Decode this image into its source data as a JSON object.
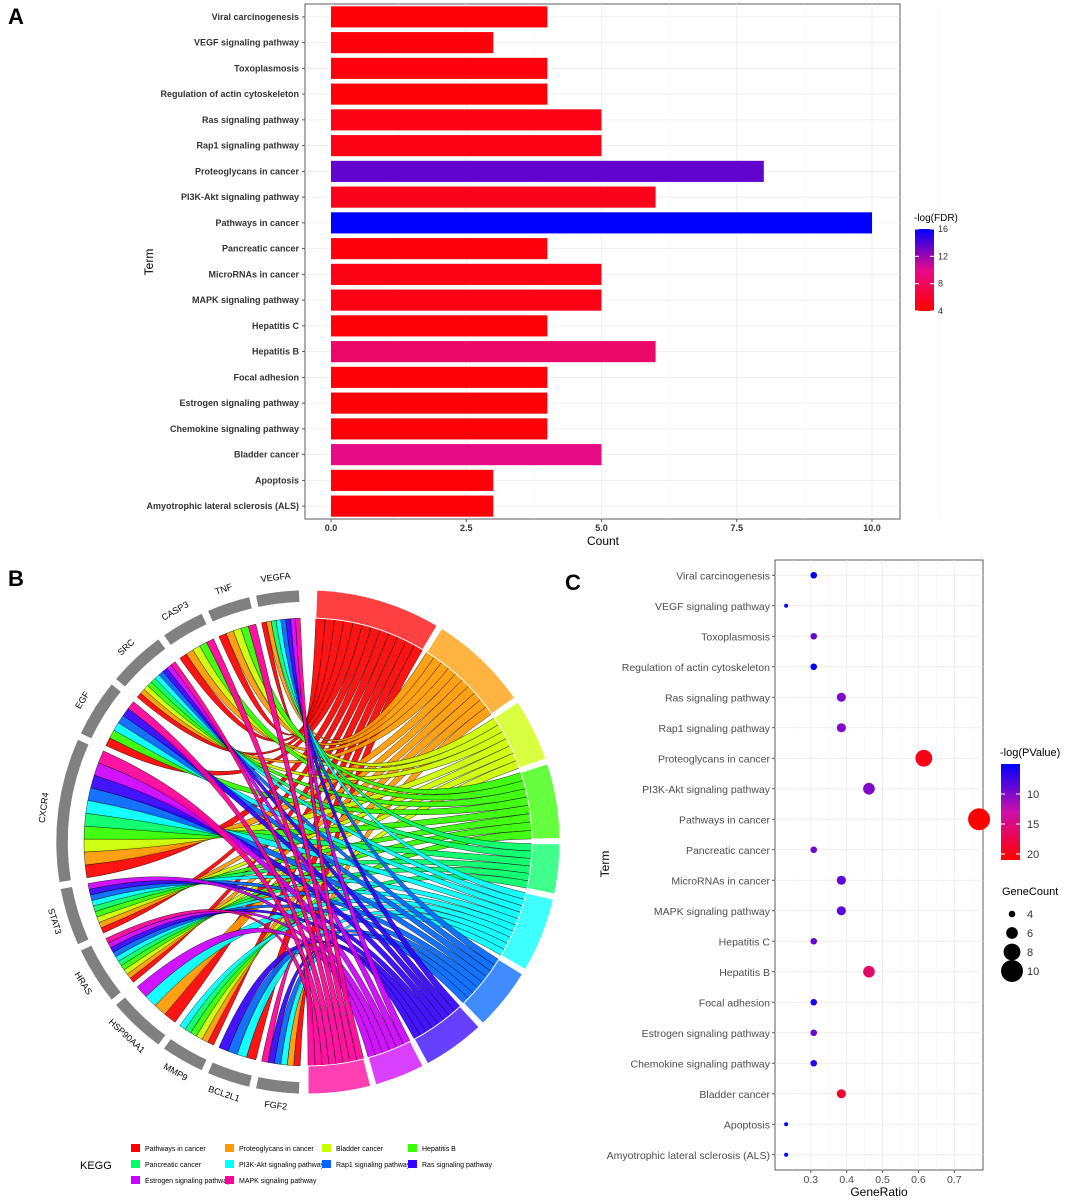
{
  "panels": {
    "a": "A",
    "b": "B",
    "c": "C"
  },
  "chart_data": [
    {
      "type": "bar",
      "orientation": "horizontal",
      "title": "",
      "xlabel": "Count",
      "ylabel": "Term",
      "xlim": [
        0,
        10
      ],
      "x_ticks": [
        0,
        2.5,
        5,
        7.5,
        10
      ],
      "x_tick_labels": [
        "0.0",
        "2.5",
        "5.0",
        "7.5",
        "10.0"
      ],
      "categories": [
        "Viral carcinogenesis",
        "VEGF signaling pathway",
        "Toxoplasmosis",
        "Regulation of actin cytoskeleton",
        "Ras signaling pathway",
        "Rap1 signaling pathway",
        "Proteoglycans in cancer",
        "PI3K-Akt signaling pathway",
        "Pathways in cancer",
        "Pancreatic cancer",
        "MicroRNAs in cancer",
        "MAPK signaling pathway",
        "Hepatitis C",
        "Hepatitis B",
        "Focal adhesion",
        "Estrogen signaling pathway",
        "Chemokine signaling pathway",
        "Bladder cancer",
        "Apoptosis",
        "Amyotrophic lateral sclerosis (ALS)"
      ],
      "values": [
        4,
        3,
        4,
        4,
        5,
        5,
        8,
        6,
        10,
        4,
        5,
        5,
        4,
        6,
        4,
        4,
        4,
        5,
        3,
        3
      ],
      "fdr": [
        4.4,
        4.5,
        4.6,
        4.4,
        4.9,
        4.9,
        13.5,
        5.2,
        16,
        4.5,
        4.9,
        4.9,
        4.4,
        8.5,
        4.4,
        4.4,
        4.4,
        9.8,
        4.3,
        4.3
      ],
      "legend": {
        "title": "-log(FDR)",
        "ticks": [
          4,
          8,
          12,
          16
        ],
        "range": [
          4,
          16
        ],
        "color_low": "#ff0000",
        "color_mid": "#e60a8a",
        "color_high": "#0000ff"
      }
    },
    {
      "type": "chord",
      "genes": [
        "VEGFA",
        "TNF",
        "CASP3",
        "SRC",
        "EGF",
        "CXCR4",
        "STAT3",
        "HRAS",
        "HSP90AA1",
        "MMP9",
        "BCL2L1",
        "FGF2"
      ],
      "pathways": [
        "Pathways in cancer",
        "Proteoglycans in cancer",
        "Bladder cancer",
        "Hepatitis B",
        "Pancreatic cancer",
        "PI3K-Akt signaling pathway",
        "Rap1 signaling pathway",
        "Ras signaling pathway",
        "Estrogen signaling pathway",
        "MAPK signaling pathway"
      ],
      "pathway_colors": [
        "#ff0000",
        "#ff9900",
        "#ccff00",
        "#33ff00",
        "#00ff66",
        "#00ffff",
        "#0066ff",
        "#3300ff",
        "#cc00ff",
        "#ff0099"
      ],
      "pathway_weights": [
        10,
        8,
        5,
        6,
        4,
        6,
        5,
        5,
        4,
        5
      ],
      "legend_title": "KEGG"
    },
    {
      "type": "scatter",
      "title": "",
      "xlabel": "GeneRatio",
      "ylabel": "Term",
      "xlim": [
        0.2,
        0.78
      ],
      "x_ticks": [
        0.3,
        0.4,
        0.5,
        0.6,
        0.7
      ],
      "categories": [
        "Viral carcinogenesis",
        "VEGF signaling pathway",
        "Toxoplasmosis",
        "Regulation of actin cytoskeleton",
        "Ras signaling pathway",
        "Rap1 signaling pathway",
        "Proteoglycans in cancer",
        "PI3K-Akt signaling pathway",
        "Pathways in cancer",
        "Pancreatic cancer",
        "MicroRNAs in cancer",
        "MAPK signaling pathway",
        "Hepatitis C",
        "Hepatitis B",
        "Focal adhesion",
        "Estrogen signaling pathway",
        "Chemokine signaling pathway",
        "Bladder cancer",
        "Apoptosis",
        "Amyotrophic lateral sclerosis (ALS)"
      ],
      "gene_ratio": [
        0.308,
        0.231,
        0.308,
        0.308,
        0.385,
        0.385,
        0.615,
        0.462,
        0.769,
        0.308,
        0.385,
        0.385,
        0.308,
        0.462,
        0.308,
        0.308,
        0.308,
        0.385,
        0.231,
        0.231
      ],
      "gene_count": [
        4,
        3,
        4,
        4,
        5,
        5,
        8,
        6,
        10,
        4,
        5,
        5,
        4,
        6,
        4,
        4,
        4,
        5,
        3,
        3
      ],
      "neg_log_p": [
        5,
        5.5,
        9,
        5,
        10,
        10,
        20,
        10,
        21,
        9.5,
        8.5,
        8.5,
        9,
        16,
        6,
        9,
        6.5,
        19,
        5,
        5
      ],
      "color_legend": {
        "title": "-log(PValue)",
        "ticks": [
          10,
          15,
          20
        ],
        "range": [
          5,
          21
        ],
        "color_low": "#0000ff",
        "color_mid": "#cc10aa",
        "color_high": "#ff0000"
      },
      "size_legend": {
        "title": "GeneCount",
        "ticks": [
          4,
          6,
          8,
          10
        ]
      }
    }
  ]
}
